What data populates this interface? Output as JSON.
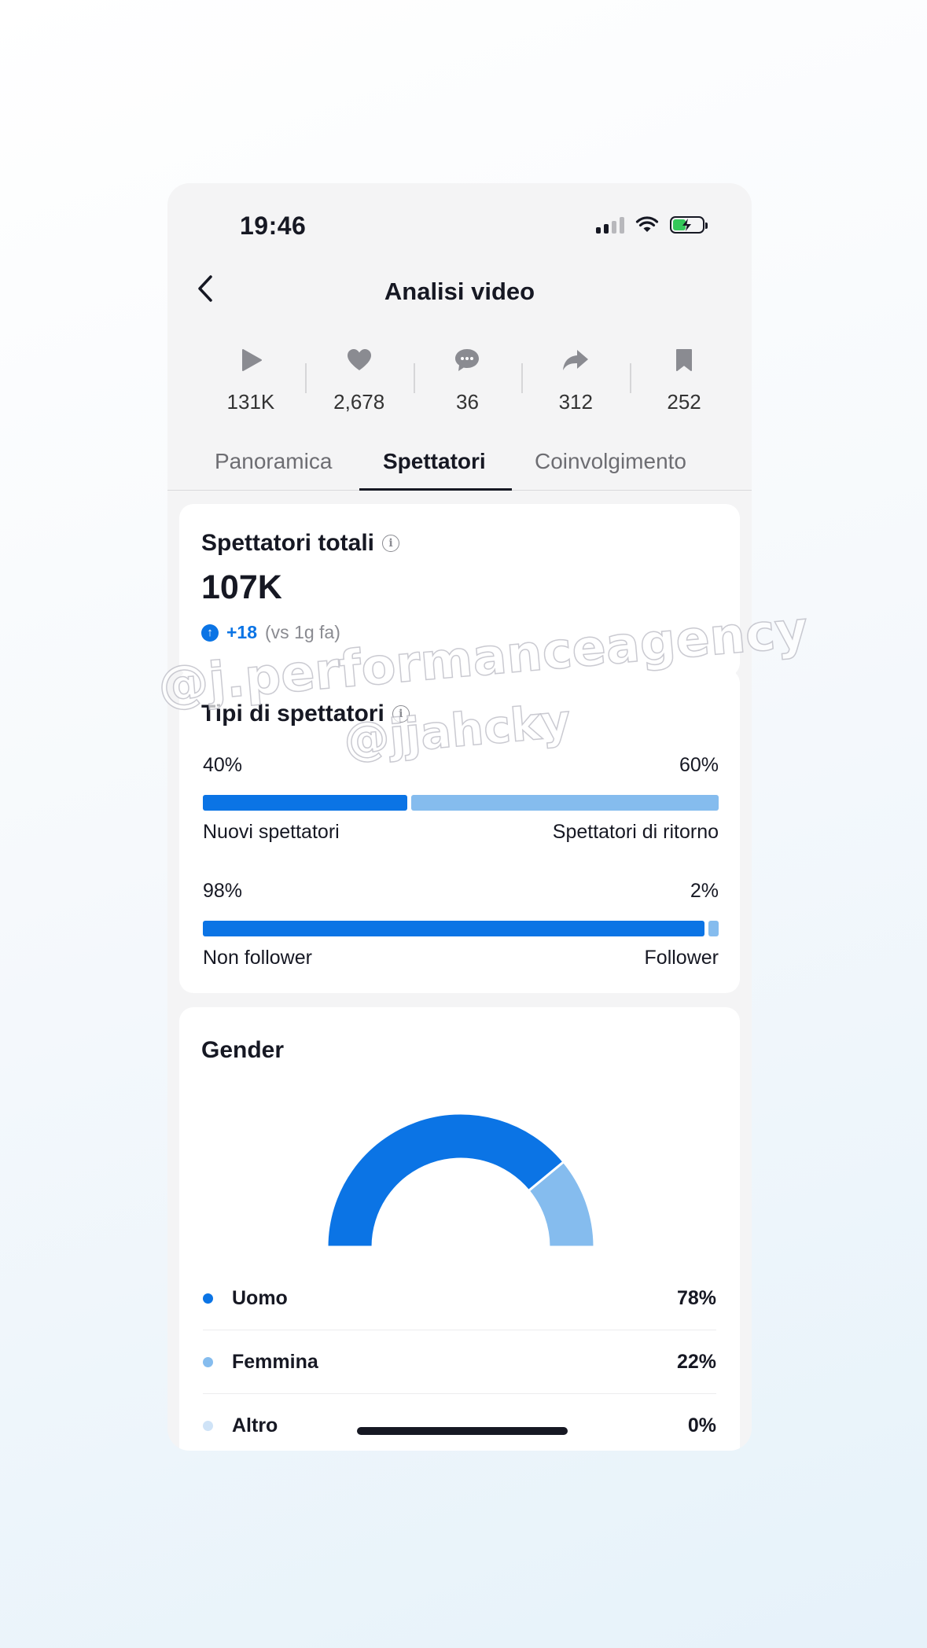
{
  "status_bar": {
    "time": "19:46"
  },
  "nav": {
    "title": "Analisi video"
  },
  "metrics": [
    {
      "icon": "play-icon",
      "value": "131K"
    },
    {
      "icon": "heart-icon",
      "value": "2,678"
    },
    {
      "icon": "comment-icon",
      "value": "36"
    },
    {
      "icon": "share-icon",
      "value": "312"
    },
    {
      "icon": "bookmark-icon",
      "value": "252"
    }
  ],
  "tabs": [
    {
      "label": "Panoramica"
    },
    {
      "label": "Spettatori",
      "active": true
    },
    {
      "label": "Coinvolgimento"
    }
  ],
  "total_viewers": {
    "title": "Spettatori totali",
    "value": "107K",
    "delta": "+18",
    "delta_note": "(vs 1g fa)"
  },
  "viewer_types": {
    "title": "Tipi di spettatori",
    "rows": [
      {
        "left_pct": "40%",
        "right_pct": "60%",
        "left_label": "Nuovi spettatori",
        "right_label": "Spettatori di ritorno",
        "left_share": 40
      },
      {
        "left_pct": "98%",
        "right_pct": "2%",
        "left_label": "Non follower",
        "right_label": "Follower",
        "left_share": 98
      }
    ]
  },
  "gender": {
    "title": "Gender",
    "items": [
      {
        "name": "Uomo",
        "pct": "78%",
        "value": 78,
        "color": "#0b74e5"
      },
      {
        "name": "Femmina",
        "pct": "22%",
        "value": 22,
        "color": "#85bcee"
      },
      {
        "name": "Altro",
        "pct": "0%",
        "value": 0,
        "color": "#cfe3f7"
      }
    ]
  },
  "watermarks": [
    "@j.performanceagency",
    "@jjahcky"
  ],
  "colors": {
    "accent": "#0b74e5",
    "accent_light": "#85bcee"
  }
}
